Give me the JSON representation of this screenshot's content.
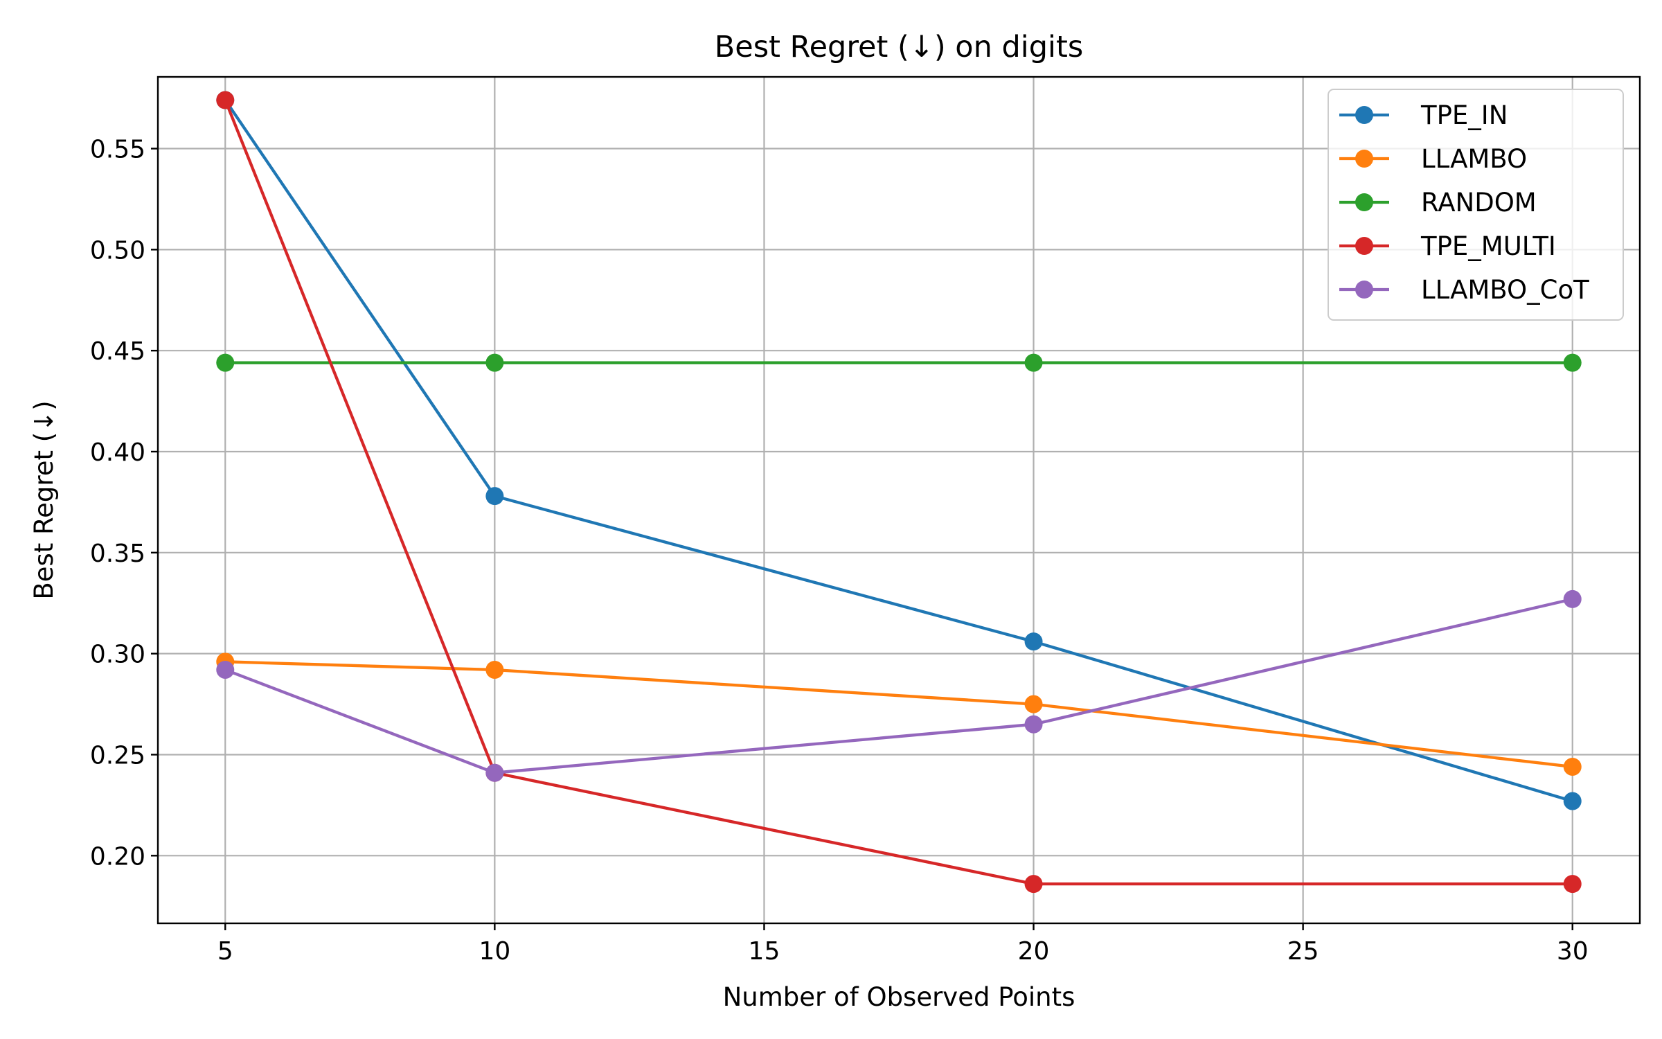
{
  "chart_data": {
    "type": "line",
    "title": "Best Regret (↓) on digits",
    "xlabel": "Number of Observed Points",
    "ylabel": "Best Regret (↓)",
    "x": [
      5,
      10,
      20,
      30
    ],
    "xlim": [
      3.75,
      31.25
    ],
    "ylim": [
      0.1665,
      0.5855
    ],
    "xticks": [
      5,
      10,
      15,
      20,
      25,
      30
    ],
    "yticks": [
      0.2,
      0.25,
      0.3,
      0.35,
      0.4,
      0.45,
      0.5,
      0.55
    ],
    "grid": true,
    "legend_position": "top-right",
    "series": [
      {
        "name": "TPE_IN",
        "color": "#1f77b4",
        "values": [
          0.574,
          0.378,
          0.306,
          0.227
        ]
      },
      {
        "name": "LLAMBO",
        "color": "#ff7f0e",
        "values": [
          0.296,
          0.292,
          0.275,
          0.244
        ]
      },
      {
        "name": "RANDOM",
        "color": "#2ca02c",
        "values": [
          0.444,
          0.444,
          0.444,
          0.444
        ]
      },
      {
        "name": "TPE_MULTI",
        "color": "#d62728",
        "values": [
          0.574,
          0.241,
          0.186,
          0.186
        ]
      },
      {
        "name": "LLAMBO_CoT",
        "color": "#9467bd",
        "values": [
          0.292,
          0.241,
          0.265,
          0.327
        ]
      }
    ]
  }
}
